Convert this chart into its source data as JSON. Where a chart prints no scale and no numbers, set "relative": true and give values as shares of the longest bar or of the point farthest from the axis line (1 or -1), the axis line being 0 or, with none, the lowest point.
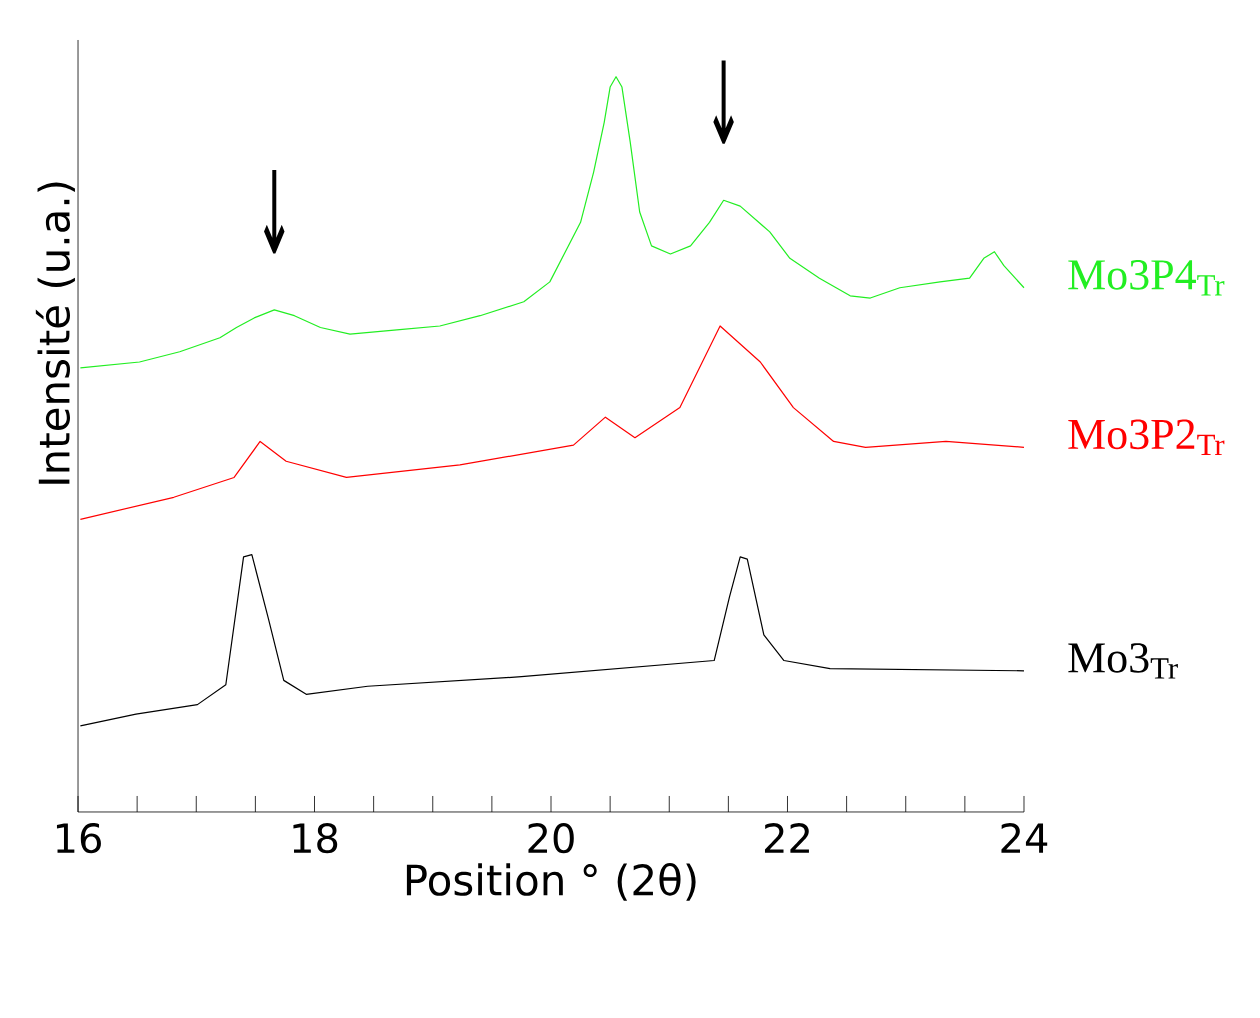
{
  "chart_data": {
    "type": "line",
    "relative": true,
    "xlabel": "Position ° (2θ)",
    "ylabel": "Intensité (u.a.)",
    "xlim": [
      16,
      24
    ],
    "xticks": [
      16,
      {
        "value": 16.5,
        "label": null
      },
      {
        "value": 17,
        "label": null
      },
      {
        "value": 17.5,
        "label": null
      },
      18,
      {
        "value": 18.5,
        "label": null
      },
      {
        "value": 19,
        "label": null
      },
      {
        "value": 19.5,
        "label": null
      },
      20,
      {
        "value": 20.5,
        "label": null
      },
      {
        "value": 21,
        "label": null
      },
      {
        "value": 21.5,
        "label": null
      },
      22,
      {
        "value": 22.5,
        "label": null
      },
      {
        "value": 23,
        "label": null
      },
      {
        "value": 23.5,
        "label": null
      },
      24
    ],
    "annotations": [
      {
        "text": "↓",
        "x": 17.66,
        "y": 0.683
      },
      {
        "text": "↓",
        "x": 21.46,
        "y": 0.832
      }
    ],
    "series": [
      {
        "name": "Mo3P4$_{Tr}$",
        "color": "#22ee22",
        "x": [
          16.02,
          16.52,
          16.86,
          17.2,
          17.34,
          17.49,
          17.66,
          17.83,
          18.05,
          18.3,
          18.72,
          19.06,
          19.4,
          19.77,
          19.99,
          20.25,
          20.36,
          20.45,
          20.5,
          20.55,
          20.6,
          20.67,
          20.75,
          20.85,
          21.01,
          21.18,
          21.34,
          21.46,
          21.6,
          21.85,
          22.02,
          22.27,
          22.53,
          22.7,
          22.95,
          23.29,
          23.54,
          23.66,
          23.75,
          23.83,
          24.0
        ],
        "values": [
          0.604,
          0.612,
          0.626,
          0.645,
          0.659,
          0.672,
          0.683,
          0.675,
          0.659,
          0.65,
          0.656,
          0.661,
          0.675,
          0.694,
          0.721,
          0.802,
          0.87,
          0.938,
          0.986,
          1.0,
          0.986,
          0.911,
          0.816,
          0.77,
          0.759,
          0.77,
          0.802,
          0.832,
          0.824,
          0.789,
          0.753,
          0.726,
          0.702,
          0.699,
          0.713,
          0.721,
          0.726,
          0.753,
          0.762,
          0.743,
          0.713
        ]
      },
      {
        "name": "Mo3P2$_{Tr}$",
        "color": "#ff0000",
        "x": [
          16.02,
          16.81,
          17.32,
          17.54,
          17.76,
          18.27,
          19.23,
          20.19,
          20.46,
          20.71,
          21.09,
          21.43,
          21.77,
          22.05,
          22.39,
          22.66,
          23.34,
          24.0
        ],
        "values": [
          0.398,
          0.428,
          0.455,
          0.504,
          0.477,
          0.455,
          0.472,
          0.499,
          0.537,
          0.509,
          0.55,
          0.661,
          0.612,
          0.55,
          0.504,
          0.496,
          0.504,
          0.496
        ]
      },
      {
        "name": "Mo3$_{Tr}$",
        "color": "#000000",
        "x": [
          16.02,
          16.49,
          17.01,
          17.25,
          17.4,
          17.47,
          17.61,
          17.74,
          17.93,
          18.45,
          19.75,
          21.38,
          21.51,
          21.6,
          21.66,
          21.8,
          21.97,
          22.36,
          24.0
        ],
        "values": [
          0.117,
          0.133,
          0.146,
          0.173,
          0.347,
          0.35,
          0.263,
          0.179,
          0.16,
          0.171,
          0.184,
          0.206,
          0.293,
          0.347,
          0.344,
          0.241,
          0.206,
          0.195,
          0.192
        ]
      }
    ]
  }
}
